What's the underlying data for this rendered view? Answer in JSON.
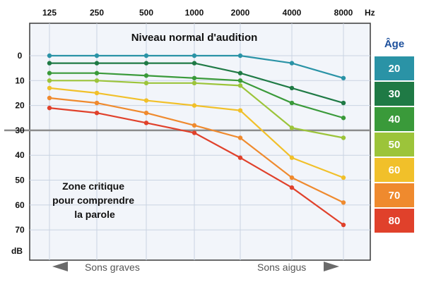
{
  "chart_data": {
    "type": "line",
    "x": [
      125,
      250,
      500,
      1000,
      2000,
      4000,
      8000
    ],
    "x_tick_labels": [
      "125",
      "250",
      "500",
      "1000",
      "2000",
      "4000",
      "8000"
    ],
    "x_unit": "Hz",
    "y_tick_labels": [
      "0",
      "10",
      "20",
      "30",
      "40",
      "50",
      "60",
      "70"
    ],
    "y_unit": "dB",
    "ylim": [
      -10,
      78
    ],
    "y_inverted": true,
    "grid": true,
    "threshold_line": 30,
    "title": "Niveau normal d'audition",
    "annotation": [
      "Zone critique",
      "pour comprendre",
      "la parole"
    ],
    "bottom_left_label": "Sons graves",
    "bottom_right_label": "Sons aigus",
    "legend_title": "Âge",
    "legend_placement": "right",
    "series": [
      {
        "name": "20",
        "color": "#2a93a6",
        "values": [
          0,
          0,
          0,
          0,
          0,
          3,
          9
        ]
      },
      {
        "name": "30",
        "color": "#1f7a45",
        "values": [
          3,
          3,
          3,
          3,
          7,
          13,
          19
        ]
      },
      {
        "name": "40",
        "color": "#3a9a3a",
        "values": [
          7,
          7,
          8,
          9,
          10,
          19,
          25
        ]
      },
      {
        "name": "50",
        "color": "#9cc43a",
        "values": [
          10,
          10,
          11,
          11,
          12,
          29,
          33
        ]
      },
      {
        "name": "60",
        "color": "#f1c02a",
        "values": [
          13,
          15,
          18,
          20,
          22,
          41,
          49
        ]
      },
      {
        "name": "70",
        "color": "#ef8a2e",
        "values": [
          17,
          19,
          23,
          28,
          33,
          49,
          59
        ]
      },
      {
        "name": "80",
        "color": "#e0412b",
        "values": [
          21,
          23,
          27,
          31,
          41,
          53,
          68
        ]
      }
    ]
  }
}
